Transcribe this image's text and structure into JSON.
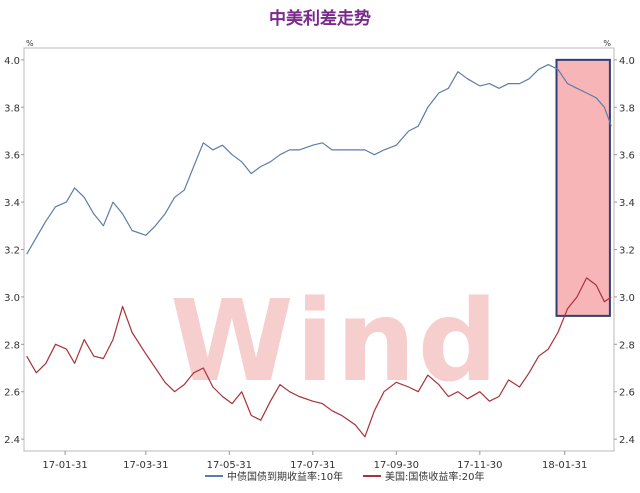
{
  "title": "中美利差走势",
  "chart_data": {
    "type": "line",
    "unit_left": "%",
    "unit_right": "%",
    "ylim": [
      2.35,
      4.05
    ],
    "y_ticks": [
      "2.4",
      "2.6",
      "2.8",
      "3.0",
      "3.2",
      "3.4",
      "3.6",
      "3.8",
      "4.0"
    ],
    "x_ticks": [
      "17-01-31",
      "17-03-31",
      "17-05-31",
      "17-07-31",
      "17-09-30",
      "17-11-30",
      "18-01-31"
    ],
    "watermark": "Wind",
    "highlight": {
      "x_range": [
        "18-01-25",
        "18-03-05"
      ],
      "y_range": [
        2.92,
        4.0
      ]
    },
    "series": [
      {
        "name": "中债国债到期收益率:10年",
        "color": "#5b7ea8",
        "points": [
          [
            "17-01-03",
            3.18
          ],
          [
            "17-01-10",
            3.25
          ],
          [
            "17-01-17",
            3.32
          ],
          [
            "17-01-24",
            3.38
          ],
          [
            "17-02-01",
            3.4
          ],
          [
            "17-02-07",
            3.46
          ],
          [
            "17-02-14",
            3.42
          ],
          [
            "17-02-21",
            3.35
          ],
          [
            "17-02-28",
            3.3
          ],
          [
            "17-03-07",
            3.4
          ],
          [
            "17-03-14",
            3.35
          ],
          [
            "17-03-21",
            3.28
          ],
          [
            "17-03-31",
            3.26
          ],
          [
            "17-04-07",
            3.3
          ],
          [
            "17-04-14",
            3.35
          ],
          [
            "17-04-21",
            3.42
          ],
          [
            "17-04-28",
            3.45
          ],
          [
            "17-05-05",
            3.55
          ],
          [
            "17-05-12",
            3.65
          ],
          [
            "17-05-19",
            3.62
          ],
          [
            "17-05-26",
            3.64
          ],
          [
            "17-06-02",
            3.6
          ],
          [
            "17-06-09",
            3.57
          ],
          [
            "17-06-16",
            3.52
          ],
          [
            "17-06-23",
            3.55
          ],
          [
            "17-06-30",
            3.57
          ],
          [
            "17-07-07",
            3.6
          ],
          [
            "17-07-14",
            3.62
          ],
          [
            "17-07-21",
            3.62
          ],
          [
            "17-07-31",
            3.64
          ],
          [
            "17-08-07",
            3.65
          ],
          [
            "17-08-14",
            3.62
          ],
          [
            "17-08-21",
            3.62
          ],
          [
            "17-08-31",
            3.62
          ],
          [
            "17-09-07",
            3.62
          ],
          [
            "17-09-14",
            3.6
          ],
          [
            "17-09-21",
            3.62
          ],
          [
            "17-09-30",
            3.64
          ],
          [
            "17-10-09",
            3.7
          ],
          [
            "17-10-16",
            3.72
          ],
          [
            "17-10-23",
            3.8
          ],
          [
            "17-10-31",
            3.86
          ],
          [
            "17-11-07",
            3.88
          ],
          [
            "17-11-14",
            3.95
          ],
          [
            "17-11-21",
            3.92
          ],
          [
            "17-11-30",
            3.89
          ],
          [
            "17-12-07",
            3.9
          ],
          [
            "17-12-14",
            3.88
          ],
          [
            "17-12-21",
            3.9
          ],
          [
            "17-12-29",
            3.9
          ],
          [
            "18-01-05",
            3.92
          ],
          [
            "18-01-12",
            3.96
          ],
          [
            "18-01-19",
            3.98
          ],
          [
            "18-01-26",
            3.96
          ],
          [
            "18-02-02",
            3.9
          ],
          [
            "18-02-09",
            3.88
          ],
          [
            "18-02-16",
            3.86
          ],
          [
            "18-02-23",
            3.84
          ],
          [
            "18-03-01",
            3.8
          ],
          [
            "18-03-06",
            3.72
          ]
        ]
      },
      {
        "name": "美国:国债收益率:20年",
        "color": "#a8323a",
        "points": [
          [
            "17-01-03",
            2.75
          ],
          [
            "17-01-10",
            2.68
          ],
          [
            "17-01-17",
            2.72
          ],
          [
            "17-01-24",
            2.8
          ],
          [
            "17-02-01",
            2.78
          ],
          [
            "17-02-07",
            2.72
          ],
          [
            "17-02-14",
            2.82
          ],
          [
            "17-02-21",
            2.75
          ],
          [
            "17-02-28",
            2.74
          ],
          [
            "17-03-07",
            2.82
          ],
          [
            "17-03-14",
            2.96
          ],
          [
            "17-03-21",
            2.85
          ],
          [
            "17-03-31",
            2.76
          ],
          [
            "17-04-07",
            2.7
          ],
          [
            "17-04-14",
            2.64
          ],
          [
            "17-04-21",
            2.6
          ],
          [
            "17-04-28",
            2.63
          ],
          [
            "17-05-05",
            2.68
          ],
          [
            "17-05-12",
            2.7
          ],
          [
            "17-05-19",
            2.62
          ],
          [
            "17-05-26",
            2.58
          ],
          [
            "17-06-02",
            2.55
          ],
          [
            "17-06-09",
            2.6
          ],
          [
            "17-06-16",
            2.5
          ],
          [
            "17-06-23",
            2.48
          ],
          [
            "17-06-30",
            2.56
          ],
          [
            "17-07-07",
            2.63
          ],
          [
            "17-07-14",
            2.6
          ],
          [
            "17-07-21",
            2.58
          ],
          [
            "17-07-31",
            2.56
          ],
          [
            "17-08-07",
            2.55
          ],
          [
            "17-08-14",
            2.52
          ],
          [
            "17-08-21",
            2.5
          ],
          [
            "17-08-31",
            2.46
          ],
          [
            "17-09-07",
            2.41
          ],
          [
            "17-09-14",
            2.52
          ],
          [
            "17-09-21",
            2.6
          ],
          [
            "17-09-30",
            2.64
          ],
          [
            "17-10-09",
            2.62
          ],
          [
            "17-10-16",
            2.6
          ],
          [
            "17-10-23",
            2.67
          ],
          [
            "17-10-31",
            2.63
          ],
          [
            "17-11-07",
            2.58
          ],
          [
            "17-11-14",
            2.6
          ],
          [
            "17-11-21",
            2.57
          ],
          [
            "17-11-30",
            2.6
          ],
          [
            "17-12-07",
            2.56
          ],
          [
            "17-12-14",
            2.58
          ],
          [
            "17-12-21",
            2.65
          ],
          [
            "17-12-29",
            2.62
          ],
          [
            "18-01-05",
            2.68
          ],
          [
            "18-01-12",
            2.75
          ],
          [
            "18-01-19",
            2.78
          ],
          [
            "18-01-26",
            2.85
          ],
          [
            "18-02-02",
            2.95
          ],
          [
            "18-02-09",
            3.0
          ],
          [
            "18-02-16",
            3.08
          ],
          [
            "18-02-23",
            3.05
          ],
          [
            "18-03-01",
            2.98
          ],
          [
            "18-03-06",
            3.0
          ]
        ]
      }
    ]
  }
}
